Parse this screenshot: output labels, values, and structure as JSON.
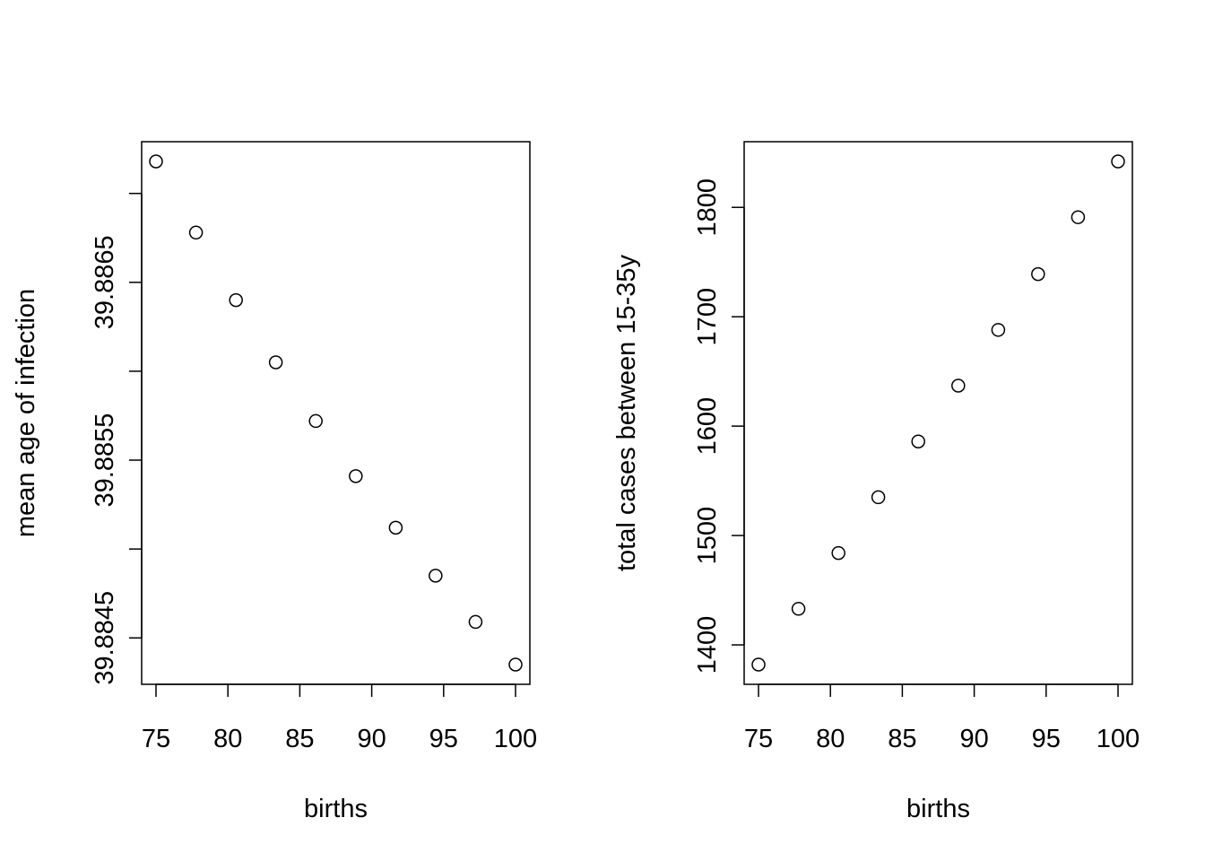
{
  "chart_data": [
    {
      "type": "scatter",
      "xlabel": "births",
      "ylabel": "mean age of infection",
      "x": [
        75,
        77.78,
        80.56,
        83.33,
        86.11,
        88.89,
        91.67,
        94.44,
        97.22,
        100
      ],
      "y": [
        39.88718,
        39.88678,
        39.8864,
        39.88605,
        39.88572,
        39.88541,
        39.88512,
        39.88485,
        39.88459,
        39.88435
      ],
      "xlim": [
        75,
        100
      ],
      "ylim": [
        39.88435,
        39.88718
      ],
      "xticks": [
        75,
        80,
        85,
        90,
        95,
        100
      ],
      "xtick_labels": [
        "75",
        "80",
        "85",
        "90",
        "95",
        "100"
      ],
      "yticks": [
        39.8845,
        39.885,
        39.8855,
        39.886,
        39.8865,
        39.887
      ],
      "ytick_labels": [
        "39.8845",
        "",
        "39.8855",
        "",
        "39.8865",
        ""
      ],
      "grid": false,
      "marker": "open-circle"
    },
    {
      "type": "scatter",
      "xlabel": "births",
      "ylabel": "total cases between 15-35y",
      "x": [
        75,
        77.78,
        80.56,
        83.33,
        86.11,
        88.89,
        91.67,
        94.44,
        97.22,
        100
      ],
      "y": [
        1382,
        1433,
        1484,
        1535,
        1586,
        1637,
        1688,
        1739,
        1791,
        1842
      ],
      "xlim": [
        75,
        100
      ],
      "ylim": [
        1382,
        1842
      ],
      "xticks": [
        75,
        80,
        85,
        90,
        95,
        100
      ],
      "xtick_labels": [
        "75",
        "80",
        "85",
        "90",
        "95",
        "100"
      ],
      "yticks": [
        1400,
        1500,
        1600,
        1700,
        1800
      ],
      "ytick_labels": [
        "1400",
        "1500",
        "1600",
        "1700",
        "1800"
      ],
      "grid": false,
      "marker": "open-circle"
    }
  ]
}
